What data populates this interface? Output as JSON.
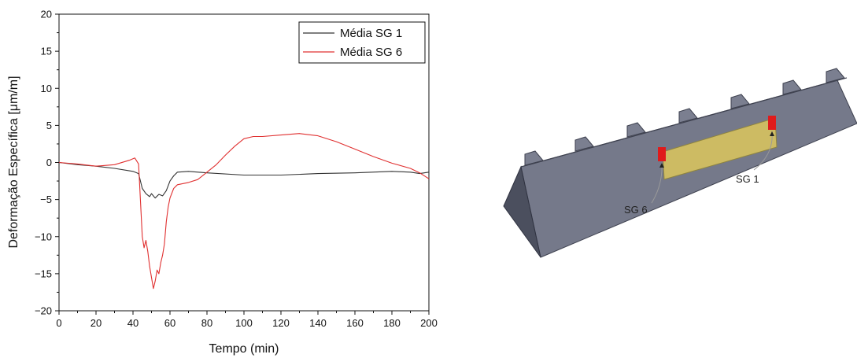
{
  "chart_data": {
    "type": "line",
    "title": "",
    "xlabel": "Tempo (min)",
    "ylabel": "Deformação Específica [μm/m]",
    "xlim": [
      0,
      200
    ],
    "ylim": [
      -20,
      20
    ],
    "x_ticks": [
      0,
      20,
      40,
      60,
      80,
      100,
      120,
      140,
      160,
      180,
      200
    ],
    "y_ticks": [
      -20,
      -15,
      -10,
      -5,
      0,
      5,
      10,
      15,
      20
    ],
    "grid": false,
    "legend_position": "top-right",
    "series": [
      {
        "name": "Média SG 1",
        "color": "#333333",
        "points": [
          [
            0,
            0
          ],
          [
            10,
            -0.3
          ],
          [
            20,
            -0.5
          ],
          [
            30,
            -0.8
          ],
          [
            40,
            -1.2
          ],
          [
            43,
            -1.5
          ],
          [
            45,
            -3.5
          ],
          [
            47,
            -4.2
          ],
          [
            49,
            -4.6
          ],
          [
            50,
            -4.2
          ],
          [
            52,
            -4.8
          ],
          [
            54,
            -4.3
          ],
          [
            56,
            -4.5
          ],
          [
            58,
            -3.8
          ],
          [
            60,
            -2.5
          ],
          [
            62,
            -1.8
          ],
          [
            64,
            -1.3
          ],
          [
            70,
            -1.2
          ],
          [
            80,
            -1.4
          ],
          [
            100,
            -1.7
          ],
          [
            120,
            -1.7
          ],
          [
            140,
            -1.5
          ],
          [
            160,
            -1.4
          ],
          [
            180,
            -1.2
          ],
          [
            190,
            -1.3
          ],
          [
            195,
            -1.5
          ],
          [
            200,
            -1.3
          ]
        ]
      },
      {
        "name": "Média SG 6",
        "color": "#e03030",
        "points": [
          [
            0,
            0
          ],
          [
            10,
            -0.2
          ],
          [
            20,
            -0.5
          ],
          [
            30,
            -0.3
          ],
          [
            38,
            0.3
          ],
          [
            41,
            0.6
          ],
          [
            43,
            -0.2
          ],
          [
            44,
            -5
          ],
          [
            45,
            -10
          ],
          [
            46,
            -11.5
          ],
          [
            47,
            -10.5
          ],
          [
            48,
            -12
          ],
          [
            49,
            -14
          ],
          [
            50,
            -15.5
          ],
          [
            51,
            -17
          ],
          [
            52,
            -16
          ],
          [
            53,
            -14.5
          ],
          [
            54,
            -15
          ],
          [
            55,
            -13.5
          ],
          [
            56,
            -12.5
          ],
          [
            57,
            -11
          ],
          [
            58,
            -8
          ],
          [
            59,
            -6
          ],
          [
            60,
            -4.8
          ],
          [
            62,
            -3.5
          ],
          [
            64,
            -3
          ],
          [
            70,
            -2.7
          ],
          [
            75,
            -2.3
          ],
          [
            80,
            -1.3
          ],
          [
            85,
            -0.3
          ],
          [
            90,
            1
          ],
          [
            95,
            2.2
          ],
          [
            100,
            3.2
          ],
          [
            105,
            3.5
          ],
          [
            110,
            3.5
          ],
          [
            120,
            3.7
          ],
          [
            130,
            3.9
          ],
          [
            140,
            3.6
          ],
          [
            150,
            2.8
          ],
          [
            160,
            1.8
          ],
          [
            170,
            0.8
          ],
          [
            180,
            -0.1
          ],
          [
            190,
            -0.8
          ],
          [
            195,
            -1.4
          ],
          [
            200,
            -2.2
          ]
        ]
      }
    ]
  },
  "diagram": {
    "labels": {
      "sg6": "SG 6",
      "sg1": "SG 1"
    },
    "colors": {
      "beam_front": "#75798a",
      "beam_top": "#6f7384",
      "beam_end": "#4b4f5e",
      "instrumented_region": "#cdbb63",
      "strain_gauge": "#e01b1b"
    }
  }
}
